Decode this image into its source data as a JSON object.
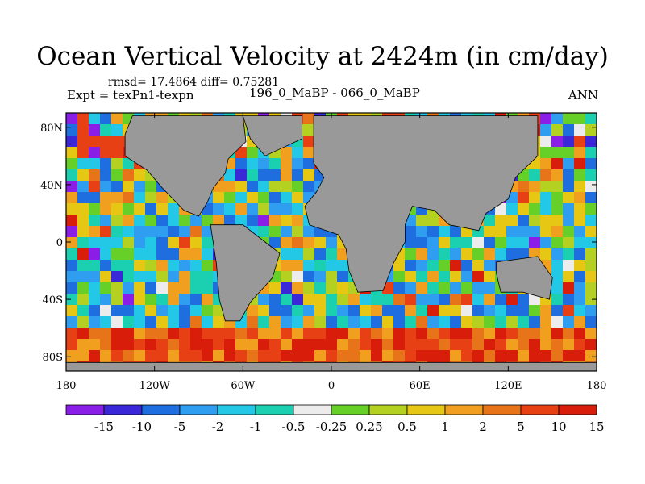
{
  "header": {
    "title": "Ocean Vertical Velocity at 2424m (in cm/day)",
    "stats": "rmsd= 17.4864 diff= 0.75281",
    "expt": "Expt = texPn1-texpn",
    "case": "196_0_MaBP - 066_0_MaBP",
    "season": "ANN"
  },
  "map": {
    "lon_range": [
      -180,
      180
    ],
    "lat_range": [
      -90,
      90
    ],
    "land_color": "#999999",
    "lon_ticks": [
      {
        "value": -180,
        "label": "180"
      },
      {
        "value": -120,
        "label": "120W"
      },
      {
        "value": -60,
        "label": "60W"
      },
      {
        "value": 0,
        "label": "0"
      },
      {
        "value": 60,
        "label": "60E"
      },
      {
        "value": 120,
        "label": "120E"
      },
      {
        "value": 180,
        "label": "180"
      }
    ],
    "lat_ticks": [
      {
        "value": 80,
        "label": "80N"
      },
      {
        "value": 40,
        "label": "40N"
      },
      {
        "value": 0,
        "label": "0"
      },
      {
        "value": -40,
        "label": "40S"
      },
      {
        "value": -80,
        "label": "80S"
      }
    ]
  },
  "colorbar": {
    "colors": [
      "#8a1ee6",
      "#3a28d8",
      "#1f6ee0",
      "#2f9ef0",
      "#22c8e6",
      "#1ad0b0",
      "#ececec",
      "#66d028",
      "#b4d020",
      "#e6c814",
      "#f0a01e",
      "#e8741a",
      "#e64014",
      "#d81e0a"
    ],
    "labels": [
      "-15",
      "-10",
      "-5",
      "-2",
      "-1",
      "-0.5",
      "-0.25",
      "0.25",
      "0.5",
      "1",
      "2",
      "5",
      "10",
      "15"
    ]
  }
}
